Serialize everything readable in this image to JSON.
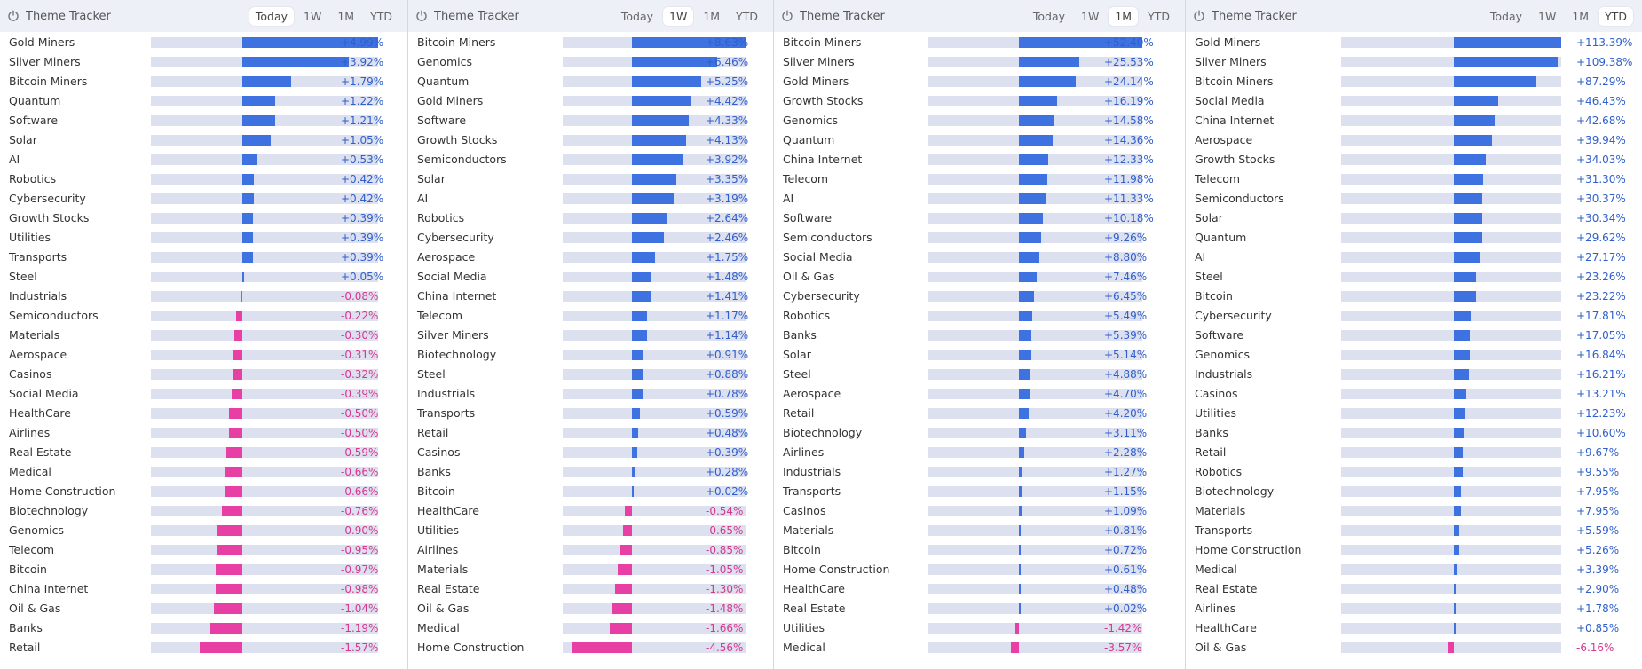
{
  "colors": {
    "positive": "#3e72e0",
    "negative": "#e83fa4",
    "positive_text": "#2f5fcc",
    "negative_text": "#d6378f"
  },
  "panels": [
    {
      "title": "Theme Tracker",
      "icon": "theme-tracker-icon",
      "tabs": [
        "Today",
        "1W",
        "1M",
        "YTD"
      ],
      "active_tab": "Today",
      "scale_max": 4.99,
      "items": [
        {
          "name": "Gold Miners",
          "value": 4.99,
          "label": "+4.99%"
        },
        {
          "name": "Silver Miners",
          "value": 3.92,
          "label": "+3.92%"
        },
        {
          "name": "Bitcoin Miners",
          "value": 1.79,
          "label": "+1.79%"
        },
        {
          "name": "Quantum",
          "value": 1.22,
          "label": "+1.22%"
        },
        {
          "name": "Software",
          "value": 1.21,
          "label": "+1.21%"
        },
        {
          "name": "Solar",
          "value": 1.05,
          "label": "+1.05%"
        },
        {
          "name": "AI",
          "value": 0.53,
          "label": "+0.53%"
        },
        {
          "name": "Robotics",
          "value": 0.42,
          "label": "+0.42%"
        },
        {
          "name": "Cybersecurity",
          "value": 0.42,
          "label": "+0.42%"
        },
        {
          "name": "Growth Stocks",
          "value": 0.39,
          "label": "+0.39%"
        },
        {
          "name": "Utilities",
          "value": 0.39,
          "label": "+0.39%"
        },
        {
          "name": "Transports",
          "value": 0.39,
          "label": "+0.39%"
        },
        {
          "name": "Steel",
          "value": 0.05,
          "label": "+0.05%"
        },
        {
          "name": "Industrials",
          "value": -0.08,
          "label": "-0.08%"
        },
        {
          "name": "Semiconductors",
          "value": -0.22,
          "label": "-0.22%"
        },
        {
          "name": "Materials",
          "value": -0.3,
          "label": "-0.30%"
        },
        {
          "name": "Aerospace",
          "value": -0.31,
          "label": "-0.31%"
        },
        {
          "name": "Casinos",
          "value": -0.32,
          "label": "-0.32%"
        },
        {
          "name": "Social Media",
          "value": -0.39,
          "label": "-0.39%"
        },
        {
          "name": "HealthCare",
          "value": -0.5,
          "label": "-0.50%"
        },
        {
          "name": "Airlines",
          "value": -0.5,
          "label": "-0.50%"
        },
        {
          "name": "Real Estate",
          "value": -0.59,
          "label": "-0.59%"
        },
        {
          "name": "Medical",
          "value": -0.66,
          "label": "-0.66%"
        },
        {
          "name": "Home Construction",
          "value": -0.66,
          "label": "-0.66%"
        },
        {
          "name": "Biotechnology",
          "value": -0.76,
          "label": "-0.76%"
        },
        {
          "name": "Genomics",
          "value": -0.9,
          "label": "-0.90%"
        },
        {
          "name": "Telecom",
          "value": -0.95,
          "label": "-0.95%"
        },
        {
          "name": "Bitcoin",
          "value": -0.97,
          "label": "-0.97%"
        },
        {
          "name": "China Internet",
          "value": -0.98,
          "label": "-0.98%"
        },
        {
          "name": "Oil & Gas",
          "value": -1.04,
          "label": "-1.04%"
        },
        {
          "name": "Banks",
          "value": -1.19,
          "label": "-1.19%"
        },
        {
          "name": "Retail",
          "value": -1.57,
          "label": "-1.57%"
        }
      ]
    },
    {
      "title": "Theme Tracker",
      "icon": "theme-tracker-icon",
      "tabs": [
        "Today",
        "1W",
        "1M",
        "YTD"
      ],
      "active_tab": "1W",
      "scale_max": 8.63,
      "items": [
        {
          "name": "Bitcoin Miners",
          "value": 8.63,
          "label": "+8.63%"
        },
        {
          "name": "Genomics",
          "value": 6.46,
          "label": "+6.46%"
        },
        {
          "name": "Quantum",
          "value": 5.25,
          "label": "+5.25%"
        },
        {
          "name": "Gold Miners",
          "value": 4.42,
          "label": "+4.42%"
        },
        {
          "name": "Software",
          "value": 4.33,
          "label": "+4.33%"
        },
        {
          "name": "Growth Stocks",
          "value": 4.13,
          "label": "+4.13%"
        },
        {
          "name": "Semiconductors",
          "value": 3.92,
          "label": "+3.92%"
        },
        {
          "name": "Solar",
          "value": 3.35,
          "label": "+3.35%"
        },
        {
          "name": "AI",
          "value": 3.19,
          "label": "+3.19%"
        },
        {
          "name": "Robotics",
          "value": 2.64,
          "label": "+2.64%"
        },
        {
          "name": "Cybersecurity",
          "value": 2.46,
          "label": "+2.46%"
        },
        {
          "name": "Aerospace",
          "value": 1.75,
          "label": "+1.75%"
        },
        {
          "name": "Social Media",
          "value": 1.48,
          "label": "+1.48%"
        },
        {
          "name": "China Internet",
          "value": 1.41,
          "label": "+1.41%"
        },
        {
          "name": "Telecom",
          "value": 1.17,
          "label": "+1.17%"
        },
        {
          "name": "Silver Miners",
          "value": 1.14,
          "label": "+1.14%"
        },
        {
          "name": "Biotechnology",
          "value": 0.91,
          "label": "+0.91%"
        },
        {
          "name": "Steel",
          "value": 0.88,
          "label": "+0.88%"
        },
        {
          "name": "Industrials",
          "value": 0.78,
          "label": "+0.78%"
        },
        {
          "name": "Transports",
          "value": 0.59,
          "label": "+0.59%"
        },
        {
          "name": "Retail",
          "value": 0.48,
          "label": "+0.48%"
        },
        {
          "name": "Casinos",
          "value": 0.39,
          "label": "+0.39%"
        },
        {
          "name": "Banks",
          "value": 0.28,
          "label": "+0.28%"
        },
        {
          "name": "Bitcoin",
          "value": 0.02,
          "label": "+0.02%"
        },
        {
          "name": "HealthCare",
          "value": -0.54,
          "label": "-0.54%"
        },
        {
          "name": "Utilities",
          "value": -0.65,
          "label": "-0.65%"
        },
        {
          "name": "Airlines",
          "value": -0.85,
          "label": "-0.85%"
        },
        {
          "name": "Materials",
          "value": -1.05,
          "label": "-1.05%"
        },
        {
          "name": "Real Estate",
          "value": -1.3,
          "label": "-1.30%"
        },
        {
          "name": "Oil & Gas",
          "value": -1.48,
          "label": "-1.48%"
        },
        {
          "name": "Medical",
          "value": -1.66,
          "label": "-1.66%"
        },
        {
          "name": "Home Construction",
          "value": -4.56,
          "label": "-4.56%"
        }
      ]
    },
    {
      "title": "Theme Tracker",
      "icon": "theme-tracker-icon",
      "tabs": [
        "Today",
        "1W",
        "1M",
        "YTD"
      ],
      "active_tab": "1M",
      "scale_max": 52.4,
      "items": [
        {
          "name": "Bitcoin Miners",
          "value": 52.4,
          "label": "+52.40%"
        },
        {
          "name": "Silver Miners",
          "value": 25.53,
          "label": "+25.53%"
        },
        {
          "name": "Gold Miners",
          "value": 24.14,
          "label": "+24.14%"
        },
        {
          "name": "Growth Stocks",
          "value": 16.19,
          "label": "+16.19%"
        },
        {
          "name": "Genomics",
          "value": 14.58,
          "label": "+14.58%"
        },
        {
          "name": "Quantum",
          "value": 14.36,
          "label": "+14.36%"
        },
        {
          "name": "China Internet",
          "value": 12.33,
          "label": "+12.33%"
        },
        {
          "name": "Telecom",
          "value": 11.98,
          "label": "+11.98%"
        },
        {
          "name": "AI",
          "value": 11.33,
          "label": "+11.33%"
        },
        {
          "name": "Software",
          "value": 10.18,
          "label": "+10.18%"
        },
        {
          "name": "Semiconductors",
          "value": 9.26,
          "label": "+9.26%"
        },
        {
          "name": "Social Media",
          "value": 8.8,
          "label": "+8.80%"
        },
        {
          "name": "Oil & Gas",
          "value": 7.46,
          "label": "+7.46%"
        },
        {
          "name": "Cybersecurity",
          "value": 6.45,
          "label": "+6.45%"
        },
        {
          "name": "Robotics",
          "value": 5.49,
          "label": "+5.49%"
        },
        {
          "name": "Banks",
          "value": 5.39,
          "label": "+5.39%"
        },
        {
          "name": "Solar",
          "value": 5.14,
          "label": "+5.14%"
        },
        {
          "name": "Steel",
          "value": 4.88,
          "label": "+4.88%"
        },
        {
          "name": "Aerospace",
          "value": 4.7,
          "label": "+4.70%"
        },
        {
          "name": "Retail",
          "value": 4.2,
          "label": "+4.20%"
        },
        {
          "name": "Biotechnology",
          "value": 3.11,
          "label": "+3.11%"
        },
        {
          "name": "Airlines",
          "value": 2.28,
          "label": "+2.28%"
        },
        {
          "name": "Industrials",
          "value": 1.27,
          "label": "+1.27%"
        },
        {
          "name": "Transports",
          "value": 1.15,
          "label": "+1.15%"
        },
        {
          "name": "Casinos",
          "value": 1.09,
          "label": "+1.09%"
        },
        {
          "name": "Materials",
          "value": 0.81,
          "label": "+0.81%"
        },
        {
          "name": "Bitcoin",
          "value": 0.72,
          "label": "+0.72%"
        },
        {
          "name": "Home Construction",
          "value": 0.61,
          "label": "+0.61%"
        },
        {
          "name": "HealthCare",
          "value": 0.48,
          "label": "+0.48%"
        },
        {
          "name": "Real Estate",
          "value": 0.02,
          "label": "+0.02%"
        },
        {
          "name": "Utilities",
          "value": -1.42,
          "label": "-1.42%"
        },
        {
          "name": "Medical",
          "value": -3.57,
          "label": "-3.57%"
        }
      ]
    },
    {
      "title": "Theme Tracker",
      "icon": "theme-tracker-icon",
      "tabs": [
        "Today",
        "1W",
        "1M",
        "YTD"
      ],
      "active_tab": "YTD",
      "scale_max": 113.39,
      "items": [
        {
          "name": "Gold Miners",
          "value": 113.39,
          "label": "+113.39%"
        },
        {
          "name": "Silver Miners",
          "value": 109.38,
          "label": "+109.38%"
        },
        {
          "name": "Bitcoin Miners",
          "value": 87.29,
          "label": "+87.29%"
        },
        {
          "name": "Social Media",
          "value": 46.43,
          "label": "+46.43%"
        },
        {
          "name": "China Internet",
          "value": 42.68,
          "label": "+42.68%"
        },
        {
          "name": "Aerospace",
          "value": 39.94,
          "label": "+39.94%"
        },
        {
          "name": "Growth Stocks",
          "value": 34.03,
          "label": "+34.03%"
        },
        {
          "name": "Telecom",
          "value": 31.3,
          "label": "+31.30%"
        },
        {
          "name": "Semiconductors",
          "value": 30.37,
          "label": "+30.37%"
        },
        {
          "name": "Solar",
          "value": 30.34,
          "label": "+30.34%"
        },
        {
          "name": "Quantum",
          "value": 29.62,
          "label": "+29.62%"
        },
        {
          "name": "AI",
          "value": 27.17,
          "label": "+27.17%"
        },
        {
          "name": "Steel",
          "value": 23.26,
          "label": "+23.26%"
        },
        {
          "name": "Bitcoin",
          "value": 23.22,
          "label": "+23.22%"
        },
        {
          "name": "Cybersecurity",
          "value": 17.81,
          "label": "+17.81%"
        },
        {
          "name": "Software",
          "value": 17.05,
          "label": "+17.05%"
        },
        {
          "name": "Genomics",
          "value": 16.84,
          "label": "+16.84%"
        },
        {
          "name": "Industrials",
          "value": 16.21,
          "label": "+16.21%"
        },
        {
          "name": "Casinos",
          "value": 13.21,
          "label": "+13.21%"
        },
        {
          "name": "Utilities",
          "value": 12.23,
          "label": "+12.23%"
        },
        {
          "name": "Banks",
          "value": 10.6,
          "label": "+10.60%"
        },
        {
          "name": "Retail",
          "value": 9.67,
          "label": "+9.67%"
        },
        {
          "name": "Robotics",
          "value": 9.55,
          "label": "+9.55%"
        },
        {
          "name": "Biotechnology",
          "value": 7.95,
          "label": "+7.95%"
        },
        {
          "name": "Materials",
          "value": 7.95,
          "label": "+7.95%"
        },
        {
          "name": "Transports",
          "value": 5.59,
          "label": "+5.59%"
        },
        {
          "name": "Home Construction",
          "value": 5.26,
          "label": "+5.26%"
        },
        {
          "name": "Medical",
          "value": 3.39,
          "label": "+3.39%"
        },
        {
          "name": "Real Estate",
          "value": 2.9,
          "label": "+2.90%"
        },
        {
          "name": "Airlines",
          "value": 1.78,
          "label": "+1.78%"
        },
        {
          "name": "HealthCare",
          "value": 0.85,
          "label": "+0.85%"
        },
        {
          "name": "Oil & Gas",
          "value": -6.16,
          "label": "-6.16%"
        }
      ]
    }
  ]
}
